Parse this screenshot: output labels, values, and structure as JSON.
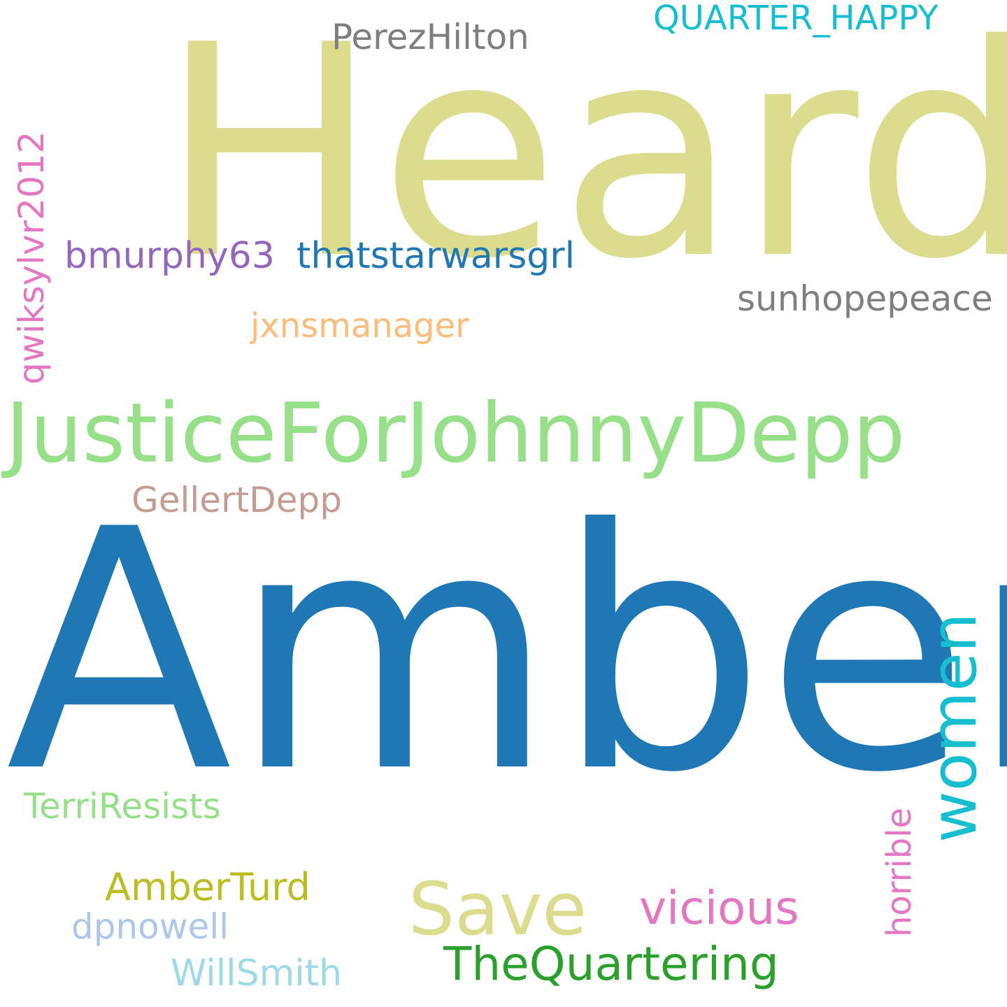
{
  "words": [
    {
      "id": "heard",
      "text": "Heard",
      "color": "#dbdc8d"
    },
    {
      "id": "amber",
      "text": "Amber",
      "color": "#1f77b4"
    },
    {
      "id": "justice",
      "text": "JusticeForJohnnyDepp",
      "color": "#98df8a"
    },
    {
      "id": "perez",
      "text": "PerezHilton",
      "color": "#7f7f7f"
    },
    {
      "id": "quarter",
      "text": "QUARTER_HAPPY",
      "color": "#17becf"
    },
    {
      "id": "bmurphy",
      "text": "bmurphy63",
      "color": "#9467bd"
    },
    {
      "id": "thatstar",
      "text": "thatstarwarsgrl",
      "color": "#1f77b4"
    },
    {
      "id": "sunhope",
      "text": "sunhopepeace",
      "color": "#7f7f7f"
    },
    {
      "id": "jxns",
      "text": "jxnsmanager",
      "color": "#ffbb78"
    },
    {
      "id": "qwik",
      "text": "qwiksylvr2012",
      "color": "#e377c2"
    },
    {
      "id": "gellert",
      "text": "GellertDepp",
      "color": "#c49c94"
    },
    {
      "id": "women",
      "text": "women",
      "color": "#17becf"
    },
    {
      "id": "terri",
      "text": "TerriResists",
      "color": "#98df8a"
    },
    {
      "id": "horrible",
      "text": "horrible",
      "color": "#e377c2"
    },
    {
      "id": "save",
      "text": "Save",
      "color": "#dbdc8d"
    },
    {
      "id": "vicious",
      "text": "vicious",
      "color": "#e377c2"
    },
    {
      "id": "amberturd",
      "text": "AmberTurd",
      "color": "#bcbd22"
    },
    {
      "id": "dpnowell",
      "text": "dpnowell",
      "color": "#aec7e8"
    },
    {
      "id": "thequart",
      "text": "TheQuartering",
      "color": "#2ca02c"
    },
    {
      "id": "willsmith",
      "text": "WillSmith",
      "color": "#9edae5"
    }
  ]
}
